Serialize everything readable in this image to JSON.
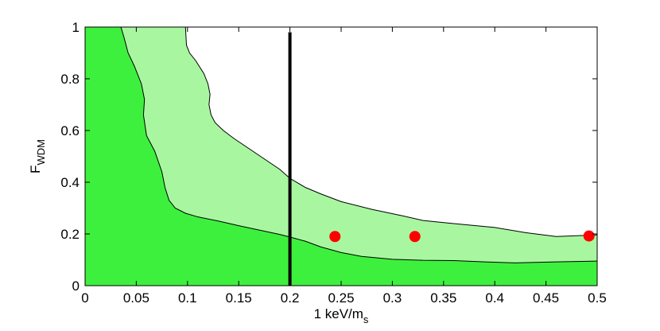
{
  "chart_data": {
    "type": "area",
    "title": "",
    "xlabel": "1 keV/m",
    "xlabel_sub": "s",
    "ylabel": "F",
    "ylabel_sub": "WDM",
    "xlim": [
      0,
      0.5
    ],
    "ylim": [
      0,
      1
    ],
    "grid": false,
    "x_ticks": [
      "0",
      "0.05",
      "0.1",
      "0.15",
      "0.2",
      "0.25",
      "0.3",
      "0.35",
      "0.4",
      "0.45",
      "0.5"
    ],
    "y_ticks": [
      "0",
      "0.2",
      "0.4",
      "0.6",
      "0.8",
      "1"
    ],
    "colors": {
      "outer_region": "#a8f7a0",
      "inner_region": "#3ef03e",
      "vertical_line": "#000000",
      "points": "#ff0000"
    },
    "regions": [
      {
        "level": "outer",
        "boundary": [
          [
            0.035,
            1.0
          ],
          [
            0.038,
            0.96
          ],
          [
            0.042,
            0.9
          ],
          [
            0.048,
            0.85
          ],
          [
            0.055,
            0.78
          ],
          [
            0.058,
            0.72
          ],
          [
            0.057,
            0.66
          ],
          [
            0.06,
            0.58
          ],
          [
            0.068,
            0.52
          ],
          [
            0.075,
            0.44
          ],
          [
            0.078,
            0.38
          ],
          [
            0.082,
            0.33
          ],
          [
            0.088,
            0.3
          ],
          [
            0.098,
            0.28
          ],
          [
            0.11,
            0.266
          ],
          [
            0.13,
            0.25
          ],
          [
            0.15,
            0.232
          ],
          [
            0.17,
            0.215
          ],
          [
            0.19,
            0.198
          ],
          [
            0.2,
            0.188
          ],
          [
            0.215,
            0.172
          ],
          [
            0.23,
            0.15
          ],
          [
            0.25,
            0.128
          ],
          [
            0.27,
            0.113
          ],
          [
            0.3,
            0.102
          ],
          [
            0.33,
            0.098
          ],
          [
            0.36,
            0.097
          ],
          [
            0.39,
            0.092
          ],
          [
            0.42,
            0.088
          ],
          [
            0.46,
            0.092
          ],
          [
            0.5,
            0.095
          ]
        ]
      },
      {
        "level": "inner",
        "boundary": [
          [
            0.098,
            1.0
          ],
          [
            0.099,
            0.93
          ],
          [
            0.102,
            0.9
          ],
          [
            0.108,
            0.87
          ],
          [
            0.116,
            0.82
          ],
          [
            0.12,
            0.78
          ],
          [
            0.122,
            0.74
          ],
          [
            0.121,
            0.7
          ],
          [
            0.123,
            0.66
          ],
          [
            0.127,
            0.63
          ],
          [
            0.135,
            0.6
          ],
          [
            0.145,
            0.57
          ],
          [
            0.16,
            0.53
          ],
          [
            0.175,
            0.49
          ],
          [
            0.19,
            0.45
          ],
          [
            0.2,
            0.415
          ],
          [
            0.215,
            0.38
          ],
          [
            0.23,
            0.355
          ],
          [
            0.25,
            0.325
          ],
          [
            0.28,
            0.295
          ],
          [
            0.31,
            0.27
          ],
          [
            0.33,
            0.252
          ],
          [
            0.36,
            0.24
          ],
          [
            0.4,
            0.225
          ],
          [
            0.43,
            0.205
          ],
          [
            0.46,
            0.19
          ],
          [
            0.5,
            0.196
          ]
        ]
      }
    ],
    "vertical_line": {
      "x": 0.2,
      "y_range": [
        0,
        0.98
      ]
    },
    "points": [
      {
        "x": 0.244,
        "y": 0.19
      },
      {
        "x": 0.322,
        "y": 0.19
      },
      {
        "x": 0.492,
        "y": 0.192
      }
    ]
  }
}
